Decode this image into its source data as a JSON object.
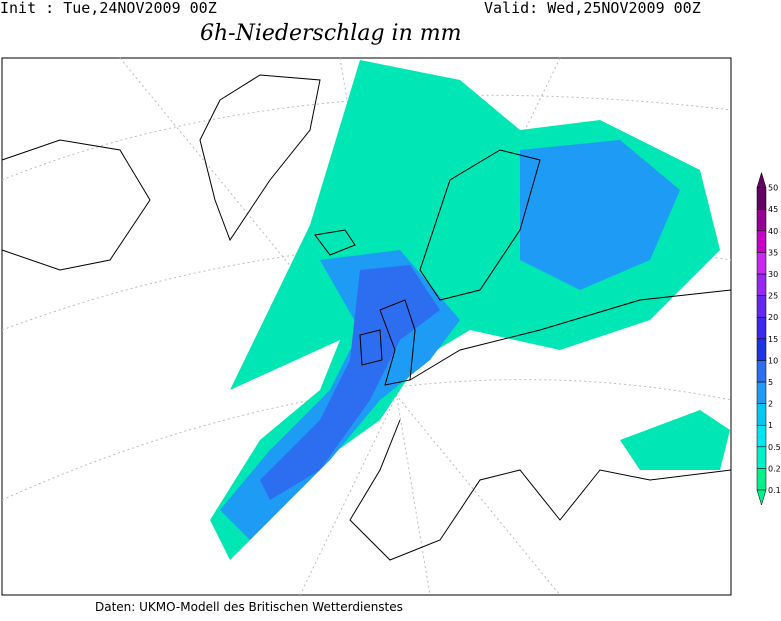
{
  "header": {
    "init": "Init : Tue,24NOV2009 00Z",
    "valid": "Valid: Wed,25NOV2009 00Z",
    "title": "6h-Niederschlag in mm"
  },
  "footer": "Daten: UKMO-Modell des Britischen Wetterdienstes",
  "legend": {
    "levels": [
      0.1,
      0.2,
      0.5,
      1,
      2,
      5,
      10,
      15,
      20,
      25,
      30,
      35,
      40,
      45,
      50
    ],
    "colors": [
      "#00f08c",
      "#00f0c8",
      "#00e6f0",
      "#00c8f5",
      "#1e9bf5",
      "#2d6ef0",
      "#1e32e6",
      "#3c28f0",
      "#6428f0",
      "#9628f0",
      "#c828f0",
      "#c800c8",
      "#960096",
      "#640064"
    ]
  }
}
